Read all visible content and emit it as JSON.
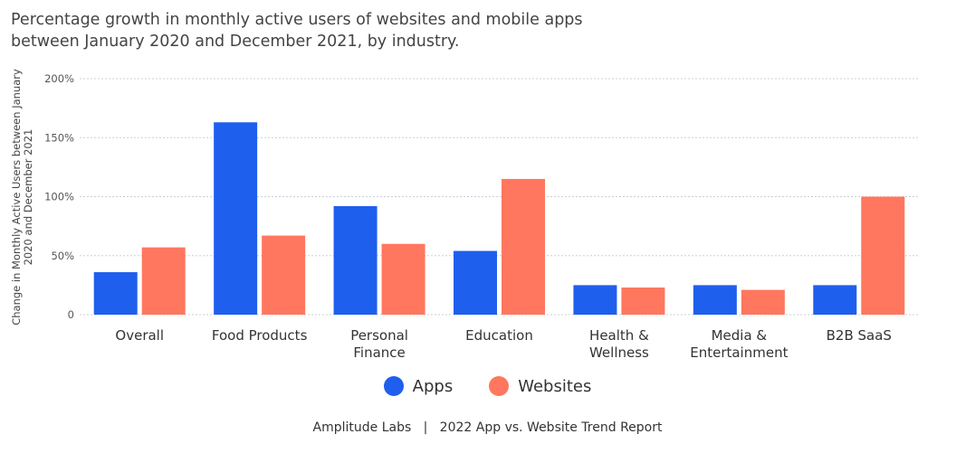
{
  "chart_data": {
    "type": "bar",
    "title": "Percentage growth in monthly active users of websites and mobile apps between January 2020 and December 2021, by industry.",
    "ylabel": "Change in Monthly Active Users between January 2020 and December 2021",
    "xlabel": "",
    "ylim": [
      0,
      200
    ],
    "yticks": [
      0,
      50,
      100,
      150,
      200
    ],
    "ytick_labels": [
      "0",
      "50%",
      "100%",
      "150%",
      "200%"
    ],
    "grid": true,
    "legend_position": "bottom",
    "categories": [
      "Overall",
      "Food Products",
      "Personal Finance",
      "Education",
      "Health & Wellness",
      "Media & Entertainment",
      "B2B SaaS"
    ],
    "category_lines": [
      [
        "Overall"
      ],
      [
        "Food Products"
      ],
      [
        "Personal",
        "Finance"
      ],
      [
        "Education"
      ],
      [
        "Health &",
        "Wellness"
      ],
      [
        "Media &",
        "Entertainment"
      ],
      [
        "B2B SaaS"
      ]
    ],
    "series": [
      {
        "name": "Apps",
        "color": "#1f5fed",
        "values": [
          36,
          163,
          92,
          54,
          25,
          25,
          25
        ]
      },
      {
        "name": "Websites",
        "color": "#ff775e",
        "values": [
          57,
          67,
          60,
          115,
          23,
          21,
          100
        ]
      }
    ]
  },
  "footer": "Amplitude Labs   |   2022 App vs. Website Trend Report"
}
